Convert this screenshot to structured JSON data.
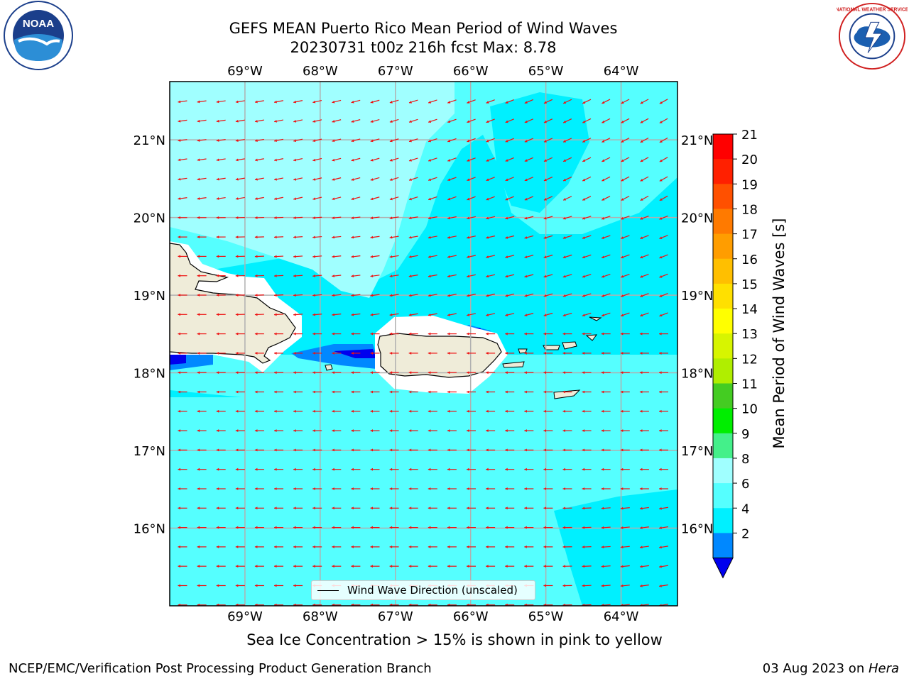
{
  "title": {
    "line1": "GEFS MEAN Puerto Rico Mean Period of Wind Waves",
    "line2": "20230731 t00z 216h fcst   Max: 8.78"
  },
  "logos": {
    "left": "noaa-logo",
    "right": "nws-logo",
    "left_text": "NOAA",
    "right_text": "NATIONAL WEATHER SERVICE"
  },
  "map": {
    "lon_labels": [
      "69°W",
      "68°W",
      "67°W",
      "66°W",
      "65°W",
      "64°W"
    ],
    "lat_labels": [
      "21°N",
      "20°N",
      "19°N",
      "18°N",
      "17°N",
      "16°N"
    ],
    "lon_values": [
      -69,
      -68,
      -67,
      -66,
      -65,
      -64
    ],
    "lat_values": [
      21,
      20,
      19,
      18,
      17,
      16
    ],
    "lon_range": [
      -70,
      -63.25
    ],
    "lat_range": [
      15,
      21.75
    ],
    "vector_legend": "Wind Wave Direction (unscaled)",
    "vector_color": "#ee1111",
    "land_color": "#efecd9"
  },
  "colorbar": {
    "label": "Mean Period of Wind Waves [s]",
    "ticks": [
      "21",
      "20",
      "19",
      "18",
      "17",
      "16",
      "15",
      "14",
      "13",
      "12",
      "11",
      "10",
      "9",
      "8",
      "6",
      "4",
      "2"
    ],
    "colors": [
      "#ff0000",
      "#ff2000",
      "#ff5000",
      "#ff7a00",
      "#ff9d00",
      "#ffbf00",
      "#ffe000",
      "#ffff00",
      "#d7f500",
      "#b0ee00",
      "#44cc22",
      "#00ee00",
      "#44f08a",
      "#a0ffff",
      "#55ffff",
      "#00f0ff",
      "#0088ff"
    ],
    "under_color": "#0000ee"
  },
  "note": "Sea Ice Concentration > 15% is shown in pink to yellow",
  "footer": {
    "left": "NCEP/EMC/Verification Post Processing Product Generation Branch",
    "right_date": "03 Aug 2023 on ",
    "right_host": "Hera"
  }
}
